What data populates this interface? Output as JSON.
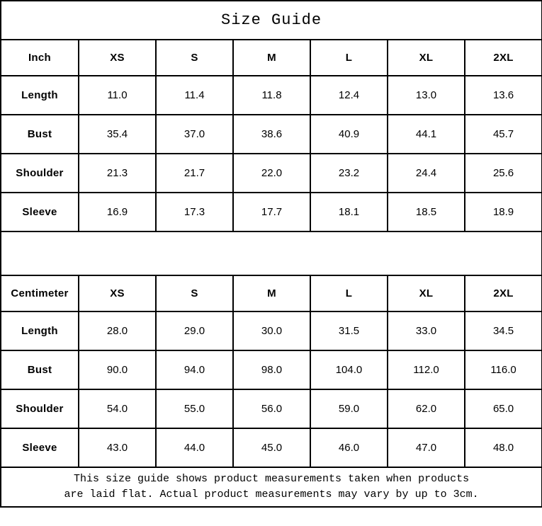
{
  "title": "Size Guide",
  "sizes": [
    "XS",
    "S",
    "M",
    "L",
    "XL",
    "2XL"
  ],
  "inch_table": {
    "unit_label": "Inch",
    "rows": [
      {
        "label": "Length",
        "values": [
          "11.0",
          "11.4",
          "11.8",
          "12.4",
          "13.0",
          "13.6"
        ]
      },
      {
        "label": "Bust",
        "values": [
          "35.4",
          "37.0",
          "38.6",
          "40.9",
          "44.1",
          "45.7"
        ]
      },
      {
        "label": "Shoulder",
        "values": [
          "21.3",
          "21.7",
          "22.0",
          "23.2",
          "24.4",
          "25.6"
        ]
      },
      {
        "label": "Sleeve",
        "values": [
          "16.9",
          "17.3",
          "17.7",
          "18.1",
          "18.5",
          "18.9"
        ]
      }
    ]
  },
  "cm_table": {
    "unit_label": "Centimeter",
    "rows": [
      {
        "label": "Length",
        "values": [
          "28.0",
          "29.0",
          "30.0",
          "31.5",
          "33.0",
          "34.5"
        ]
      },
      {
        "label": "Bust",
        "values": [
          "90.0",
          "94.0",
          "98.0",
          "104.0",
          "112.0",
          "116.0"
        ]
      },
      {
        "label": "Shoulder",
        "values": [
          "54.0",
          "55.0",
          "56.0",
          "59.0",
          "62.0",
          "65.0"
        ]
      },
      {
        "label": "Sleeve",
        "values": [
          "43.0",
          "44.0",
          "45.0",
          "46.0",
          "47.0",
          "48.0"
        ]
      }
    ]
  },
  "footer": {
    "line1": "This size guide shows product measurements taken when products",
    "line2": "are laid flat. Actual product measurements may vary by up to 3cm."
  }
}
